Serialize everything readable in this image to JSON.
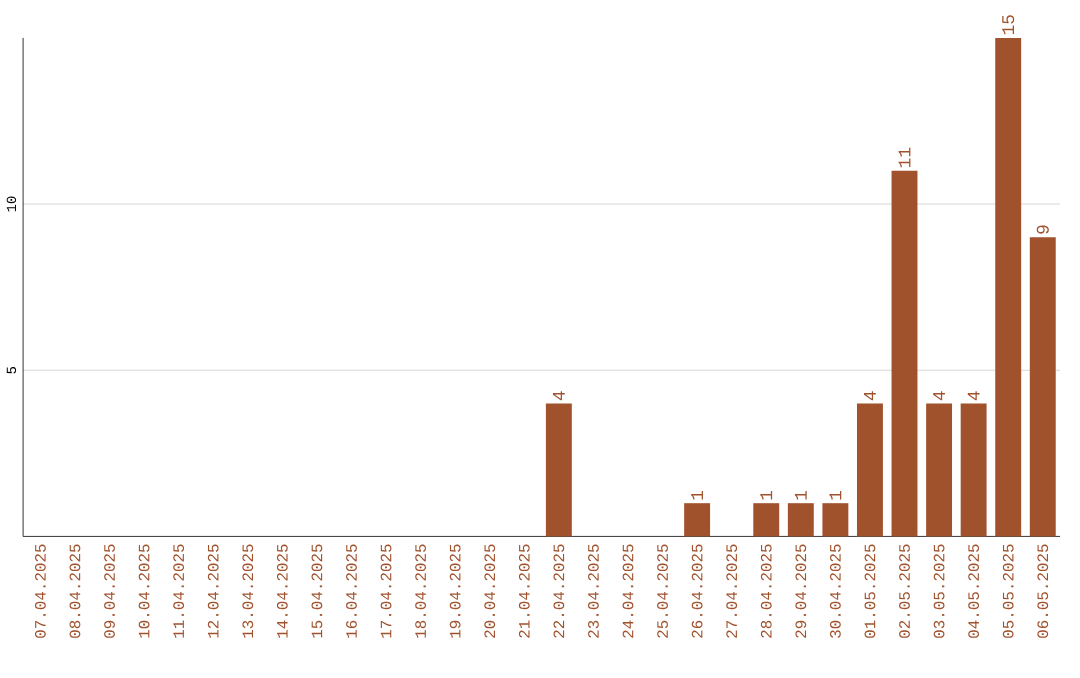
{
  "chart_data": {
    "type": "bar",
    "categories": [
      "07.04.2025",
      "08.04.2025",
      "09.04.2025",
      "10.04.2025",
      "11.04.2025",
      "12.04.2025",
      "13.04.2025",
      "14.04.2025",
      "15.04.2025",
      "16.04.2025",
      "17.04.2025",
      "18.04.2025",
      "19.04.2025",
      "20.04.2025",
      "21.04.2025",
      "22.04.2025",
      "23.04.2025",
      "24.04.2025",
      "25.04.2025",
      "26.04.2025",
      "27.04.2025",
      "28.04.2025",
      "29.04.2025",
      "30.04.2025",
      "01.05.2025",
      "02.05.2025",
      "03.05.2025",
      "04.05.2025",
      "05.05.2025",
      "06.05.2025"
    ],
    "values": [
      0,
      0,
      0,
      0,
      0,
      0,
      0,
      0,
      0,
      0,
      0,
      0,
      0,
      0,
      0,
      4,
      0,
      0,
      0,
      1,
      0,
      1,
      1,
      1,
      4,
      11,
      4,
      4,
      15,
      9
    ],
    "value_labels": [
      null,
      null,
      null,
      null,
      null,
      null,
      null,
      null,
      null,
      null,
      null,
      null,
      null,
      null,
      null,
      "4",
      null,
      null,
      null,
      "1",
      null,
      "1",
      "1",
      "1",
      "4",
      "11",
      "4",
      "4",
      "15",
      "9"
    ],
    "color": "#a0522d",
    "ylim": [
      0,
      15
    ],
    "yticks": [
      5,
      10
    ],
    "grid": "y"
  }
}
